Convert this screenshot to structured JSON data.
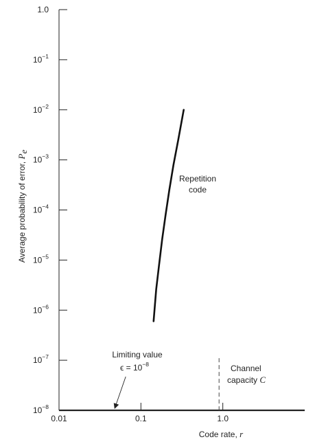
{
  "chart_data": {
    "type": "line",
    "title": "",
    "xlabel": "Code rate,",
    "xlabel_var": "r",
    "ylabel": "Average probability of error,",
    "ylabel_var": "P",
    "ylabel_sub": "e",
    "x_scale": "log",
    "y_scale": "log",
    "xlim": [
      0.01,
      10
    ],
    "ylim": [
      1e-08,
      1
    ],
    "grid": false,
    "x_ticks": [
      {
        "value": 0.01,
        "label": "0.01"
      },
      {
        "value": 0.1,
        "label": "0.1"
      },
      {
        "value": 1,
        "label": "1.0"
      }
    ],
    "y_ticks": [
      {
        "value": 1,
        "base": "1.0",
        "exp": ""
      },
      {
        "value": 0.1,
        "base": "10",
        "exp": "−1"
      },
      {
        "value": 0.01,
        "base": "10",
        "exp": "−2"
      },
      {
        "value": 0.001,
        "base": "10",
        "exp": "−3"
      },
      {
        "value": 0.0001,
        "base": "10",
        "exp": "−4"
      },
      {
        "value": 1e-05,
        "base": "10",
        "exp": "−5"
      },
      {
        "value": 1e-06,
        "base": "10",
        "exp": "−6"
      },
      {
        "value": 1e-07,
        "base": "10",
        "exp": "−7"
      },
      {
        "value": 1e-08,
        "base": "10",
        "exp": "−8"
      }
    ],
    "series": [
      {
        "label_line1": "Repetition",
        "label_line2": "code",
        "points": [
          {
            "x": 0.1429,
            "y": 6e-07
          },
          {
            "x": 0.1538,
            "y": 2.6e-06
          },
          {
            "x": 0.1667,
            "y": 8e-06
          },
          {
            "x": 0.1818,
            "y": 2.6e-05
          },
          {
            "x": 0.2,
            "y": 8e-05
          },
          {
            "x": 0.2222,
            "y": 0.00025
          },
          {
            "x": 0.25,
            "y": 0.0008
          },
          {
            "x": 0.2857,
            "y": 0.0025
          },
          {
            "x": 0.3333,
            "y": 0.01
          }
        ]
      }
    ],
    "limit_line": {
      "y": 1e-08,
      "label_line1": "Limiting value",
      "label_pre": "ϵ = 10",
      "label_exp": "−8",
      "arrow_x": 0.047
    },
    "capacity_line": {
      "x": 0.9,
      "y_top": 1.1e-07,
      "label_line1": "Channel",
      "label_pre": "capacity",
      "label_var": "C"
    }
  }
}
